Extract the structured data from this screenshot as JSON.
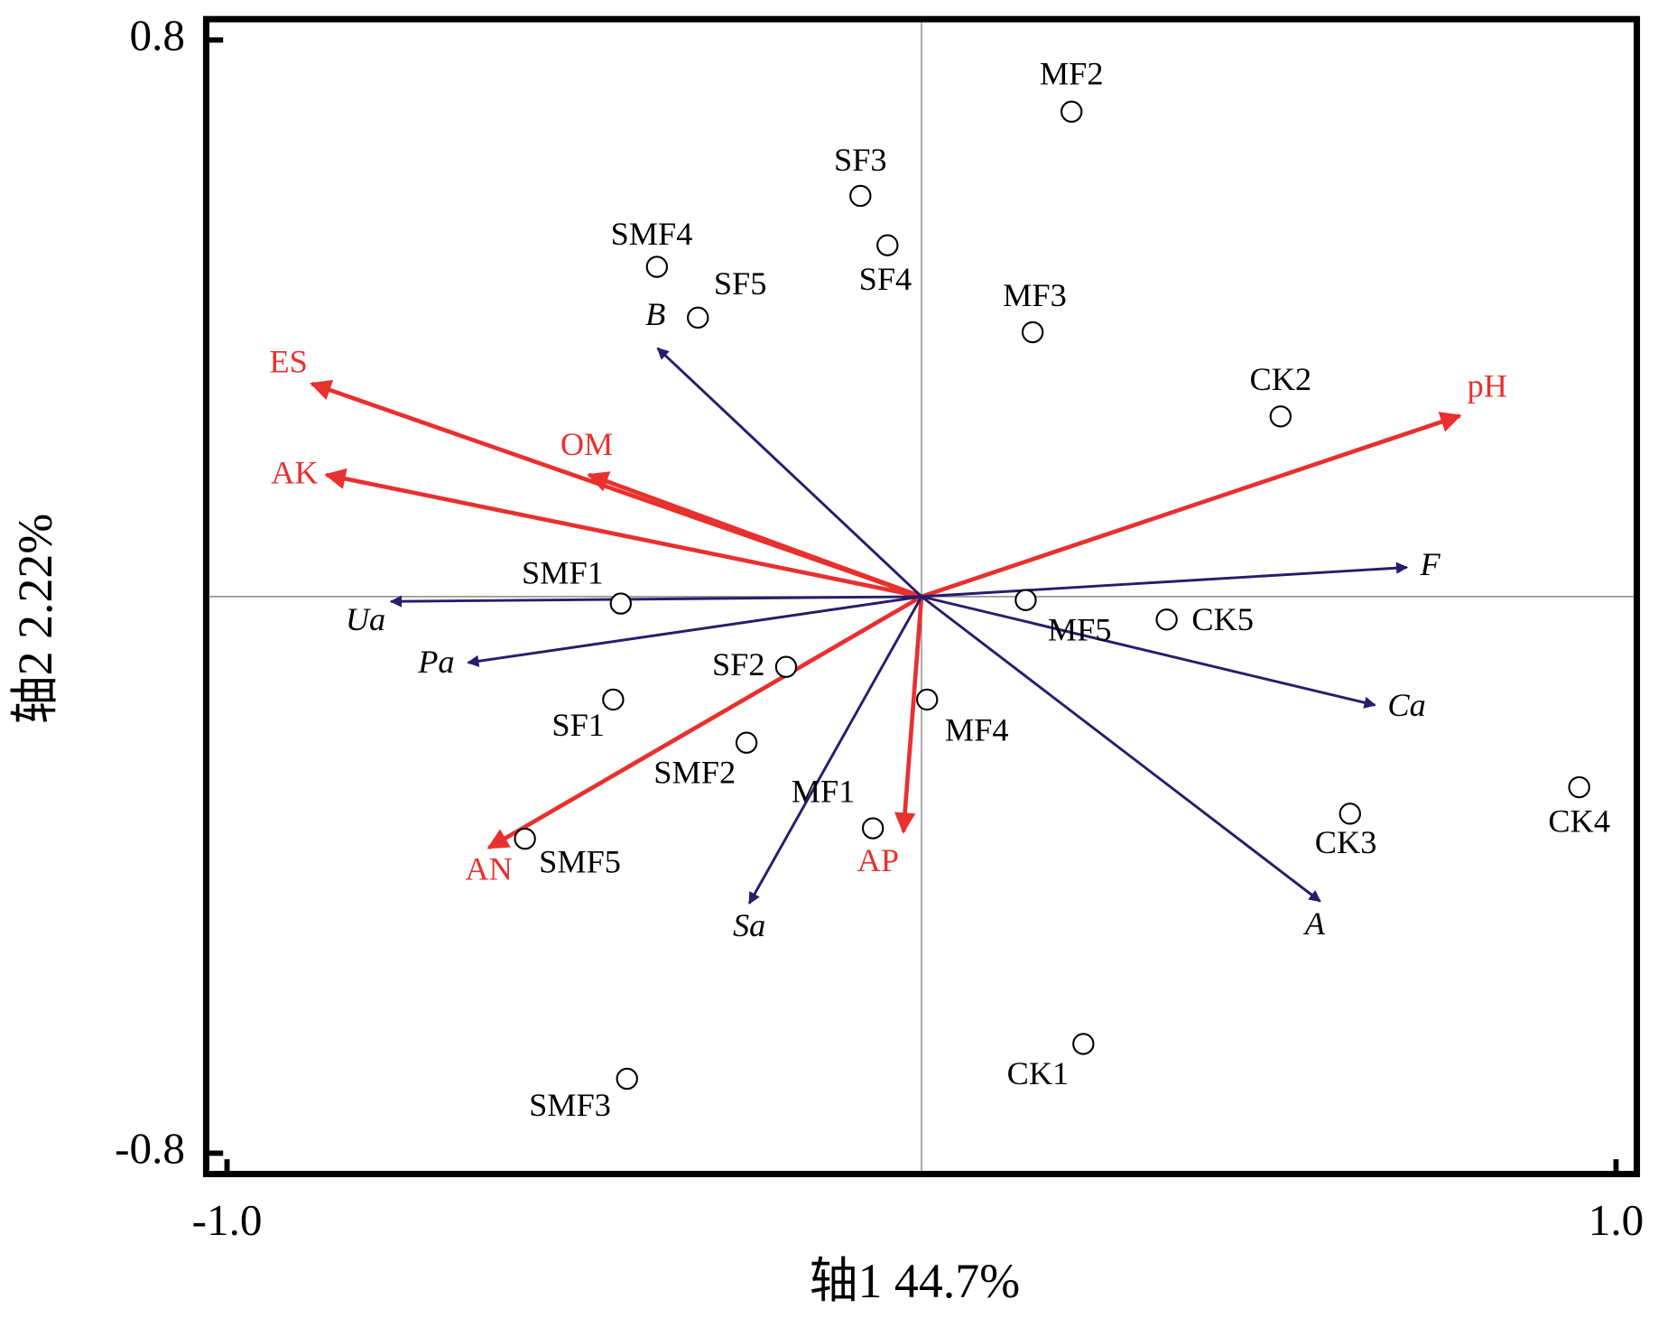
{
  "chart_data": {
    "type": "biplot",
    "xlabel": "轴1 44.7%",
    "ylabel": "轴2 2.22%",
    "xlim": [
      -1.03,
      1.03
    ],
    "ylim": [
      -0.83,
      0.83
    ],
    "xticks": [
      {
        "value": -1,
        "label": "-1.0"
      },
      {
        "value": 1,
        "label": "1.0"
      }
    ],
    "yticks": [
      0.8,
      -0.8
    ],
    "points": {
      "color": "#000000",
      "labels": [
        "MF2",
        "SF3",
        "SF4",
        "SMF4",
        "SF5",
        "MF3",
        "CK2",
        "SMF1",
        "MF5",
        "CK5",
        "SF2",
        "SF1",
        "MF4",
        "SMF2",
        "MF1",
        "SMF5",
        "CK4",
        "CK3",
        "CK1",
        "SMF3"
      ],
      "x": [
        0.216,
        -0.088,
        -0.049,
        -0.381,
        -0.322,
        0.16,
        0.517,
        -0.433,
        0.15,
        0.353,
        -0.195,
        -0.444,
        0.008,
        -0.252,
        -0.07,
        -0.571,
        0.947,
        0.617,
        0.233,
        -0.424
      ],
      "y": [
        0.697,
        0.576,
        0.505,
        0.474,
        0.401,
        0.38,
        0.259,
        -0.01,
        -0.005,
        -0.033,
        -0.101,
        -0.148,
        -0.148,
        -0.21,
        -0.333,
        -0.348,
        -0.274,
        -0.312,
        -0.643,
        -0.693
      ]
    },
    "vectors": [
      {
        "color": "#e8302f",
        "italic": false,
        "labels": [
          "ES",
          "AK",
          "OM",
          "pH",
          "AN",
          "AP"
        ],
        "x": [
          -0.878,
          -0.857,
          -0.479,
          0.775,
          -0.623,
          -0.026
        ],
        "y": [
          0.306,
          0.175,
          0.175,
          0.26,
          -0.361,
          -0.338
        ]
      },
      {
        "color": "#2b1b6b",
        "italic": true,
        "labels": [
          "B",
          "Ua",
          "Pa",
          "F",
          "Ca",
          "A",
          "Sa"
        ],
        "x": [
          -0.38,
          -0.764,
          -0.653,
          0.699,
          0.653,
          0.574,
          -0.248
        ],
        "y": [
          0.357,
          -0.007,
          -0.095,
          0.042,
          -0.156,
          -0.438,
          -0.441
        ]
      }
    ]
  }
}
